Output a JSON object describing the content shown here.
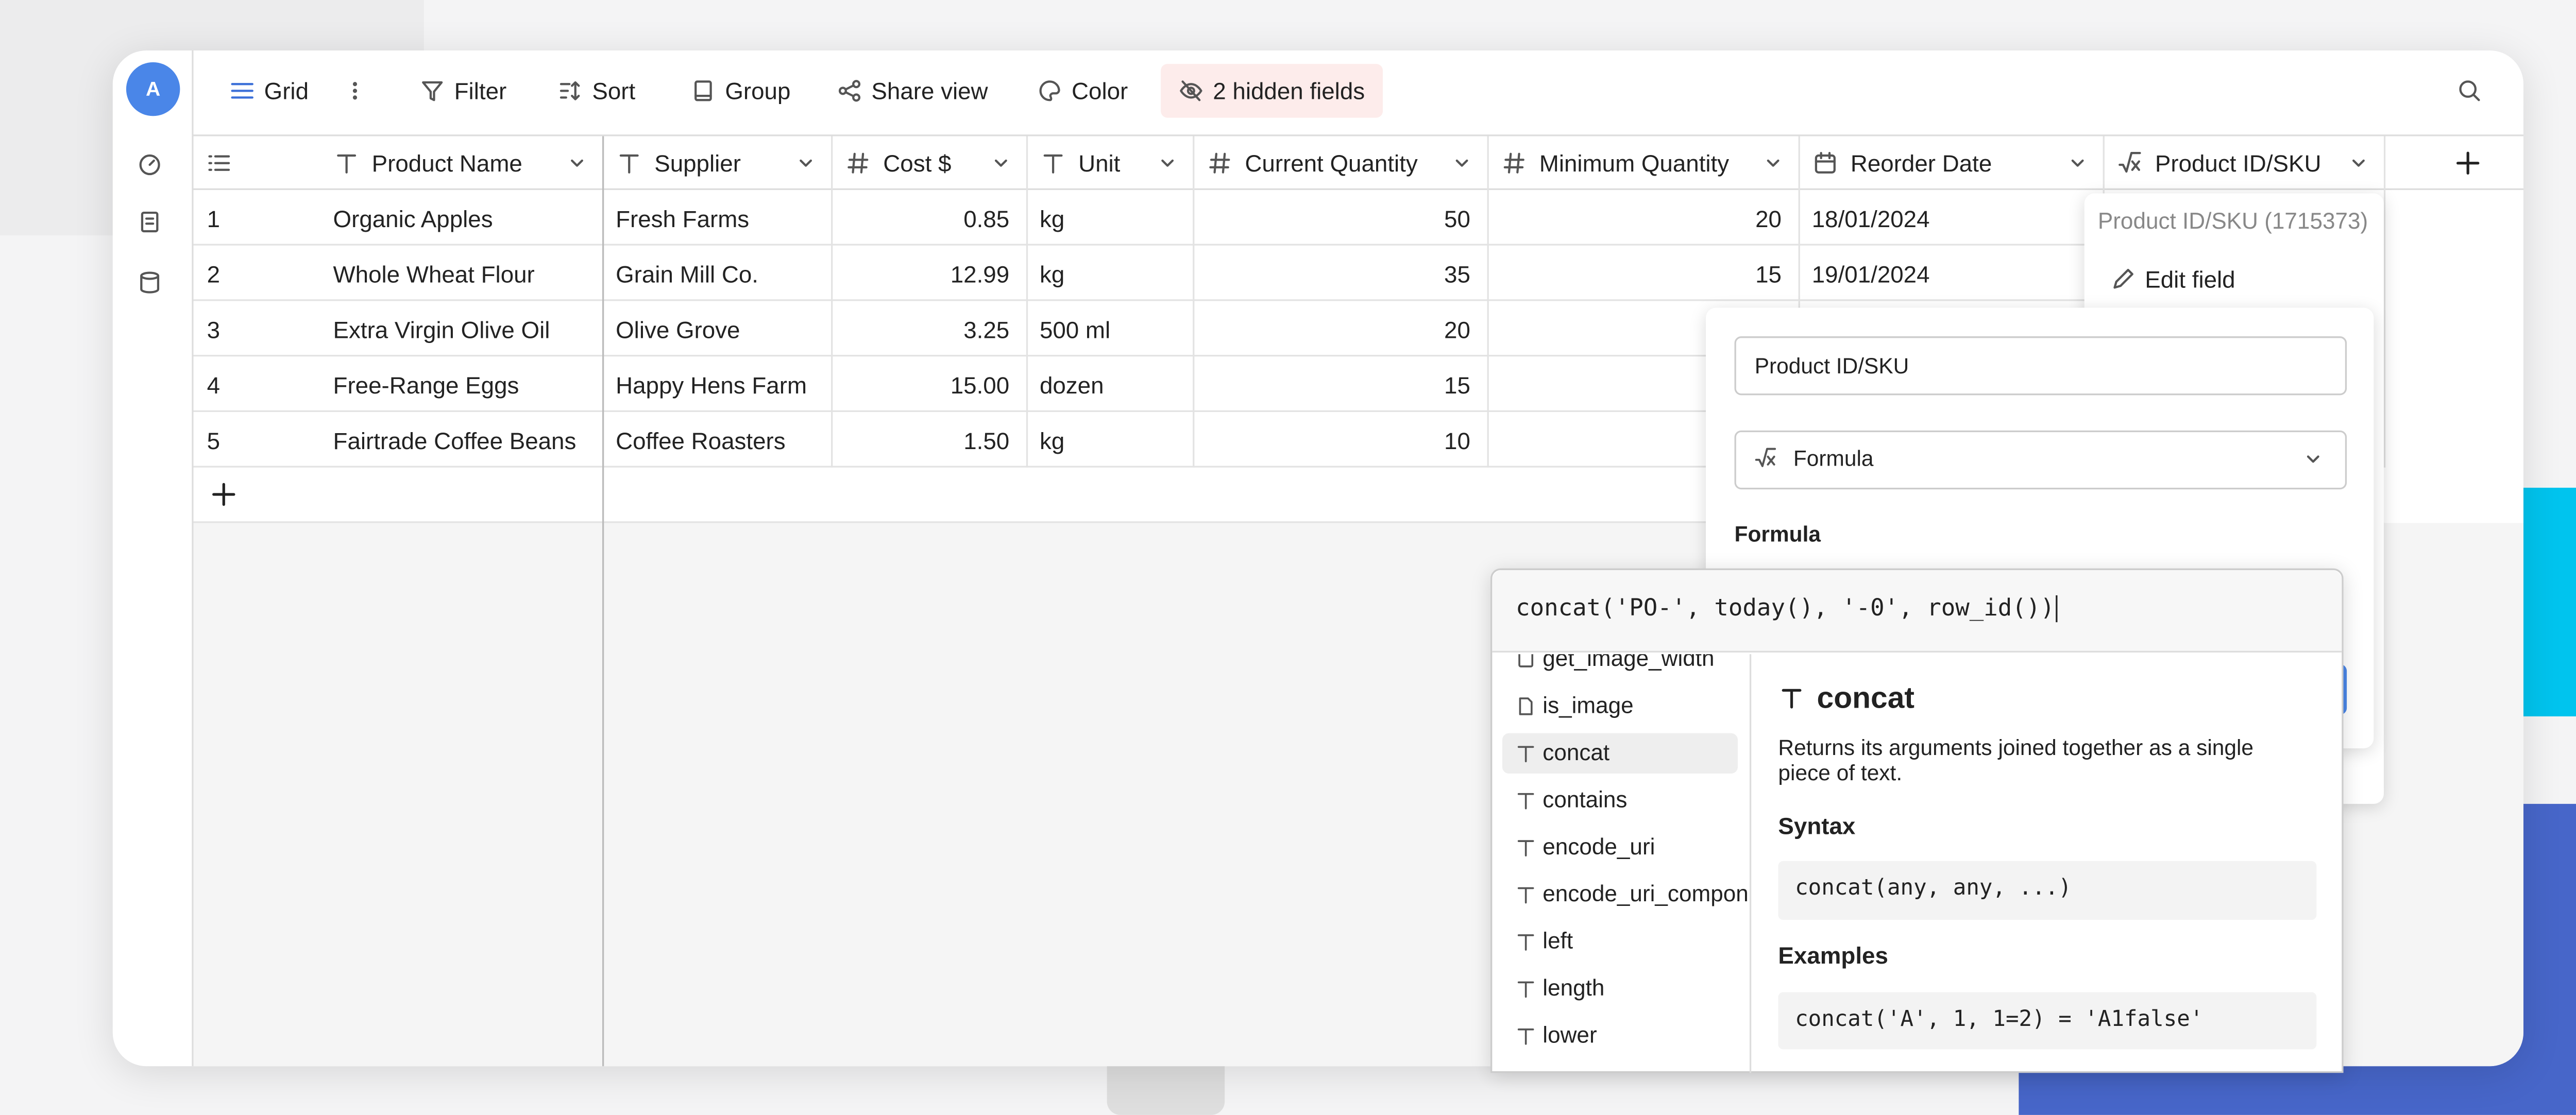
{
  "sidebar": {
    "avatar": "A"
  },
  "toolbar": {
    "view": "Grid",
    "buttons": [
      "Filter",
      "Sort",
      "Group",
      "Share view",
      "Color",
      "2 hidden fields"
    ]
  },
  "table": {
    "columns": [
      "Product Name",
      "Supplier",
      "Cost $",
      "Unit",
      "Current Quantity",
      "Minimum Quantity",
      "Reorder Date",
      "Product ID/SKU"
    ],
    "rows": [
      [
        "1",
        "Organic Apples",
        "Fresh Farms",
        "0.85",
        "kg",
        "50",
        "20",
        "18/01/2024"
      ],
      [
        "2",
        "Whole Wheat Flour",
        "Grain Mill Co.",
        "12.99",
        "kg",
        "35",
        "15",
        "19/01/2024"
      ],
      [
        "3",
        "Extra Virgin Olive Oil",
        "Olive Grove",
        "3.25",
        "500 ml",
        "20"
      ],
      [
        "4",
        "Free-Range Eggs",
        "Happy Hens Farm",
        "15.00",
        "dozen",
        "15"
      ],
      [
        "5",
        "Fairtrade Coffee Beans",
        "Coffee Roasters",
        "1.50",
        "kg",
        "10"
      ]
    ]
  },
  "field_menu": {
    "title": "Product ID/SKU (1715373)",
    "items": [
      "Edit field"
    ]
  },
  "field_editor": {
    "name": "Product ID/SKU",
    "type": "Formula",
    "formula_label": "Formula"
  },
  "formula_editor": {
    "input": "concat('PO-', today(), '-0', row_id())",
    "functions": [
      "get_image_width",
      "is_image",
      "concat",
      "contains",
      "encode_uri",
      "encode_uri_component",
      "left",
      "length",
      "lower"
    ]
  },
  "docs": {
    "title": "concat",
    "description": "Returns its arguments joined together as a single piece of text.",
    "syntax_heading": "Syntax",
    "syntax": "concat(any, any, ...)",
    "examples_heading": "Examples",
    "example": "concat('A', 1, 1=2) = 'A1false'"
  }
}
